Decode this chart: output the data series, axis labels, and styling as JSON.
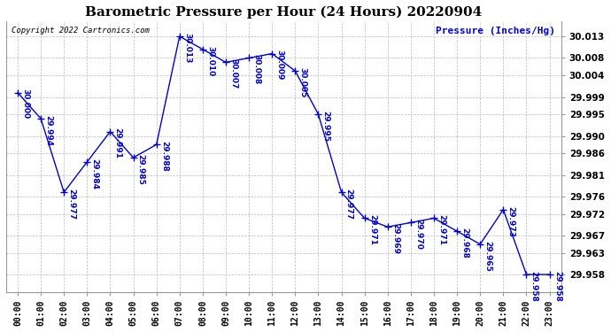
{
  "title": "Barometric Pressure per Hour (24 Hours) 20220904",
  "ylabel": "Pressure (Inches/Hg)",
  "copyright": "Copyright 2022 Cartronics.com",
  "hours": [
    "00:00",
    "01:00",
    "02:00",
    "03:00",
    "04:00",
    "05:00",
    "06:00",
    "07:00",
    "08:00",
    "09:00",
    "10:00",
    "11:00",
    "12:00",
    "13:00",
    "14:00",
    "15:00",
    "16:00",
    "17:00",
    "18:00",
    "19:00",
    "20:00",
    "21:00",
    "22:00",
    "23:00"
  ],
  "values": [
    30.0,
    29.994,
    29.977,
    29.984,
    29.991,
    29.985,
    29.988,
    30.013,
    30.01,
    30.007,
    30.008,
    30.009,
    30.005,
    29.995,
    29.977,
    29.971,
    29.969,
    29.97,
    29.971,
    29.968,
    29.965,
    29.973,
    29.958,
    29.958
  ],
  "line_color": "#0000cc",
  "marker": "+",
  "marker_size": 6,
  "label_color": "#0000cc",
  "title_color": "#000000",
  "bg_color": "#ffffff",
  "grid_color": "#bbbbbb",
  "ylim_min": 29.954,
  "ylim_max": 30.0165,
  "yticks": [
    29.958,
    29.963,
    29.967,
    29.972,
    29.976,
    29.981,
    29.986,
    29.99,
    29.995,
    29.999,
    30.004,
    30.008,
    30.013
  ],
  "ytick_labels": [
    "29.958",
    "29.963",
    "29.967",
    "29.972",
    "29.976",
    "29.981",
    "29.986",
    "29.990",
    "29.995",
    "29.999",
    "30.004",
    "30.008",
    "30.013"
  ]
}
